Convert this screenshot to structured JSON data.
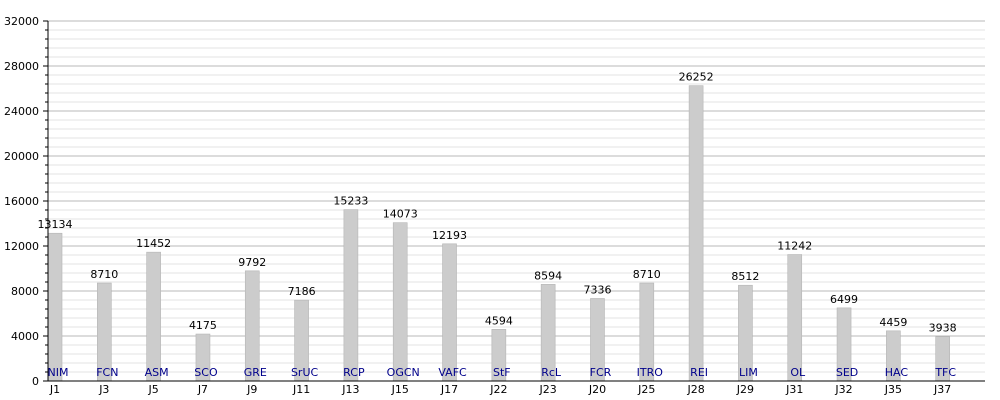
{
  "chart_data": {
    "type": "bar",
    "ylim": [
      0,
      32000
    ],
    "ytick_labels": [
      "0",
      "4000",
      "8000",
      "12000",
      "16000",
      "20000",
      "24000",
      "28000",
      "32000"
    ],
    "grid": true,
    "categories": [
      "J1",
      "J3",
      "J5",
      "J7",
      "J9",
      "J11",
      "J13",
      "J15",
      "J17",
      "J22",
      "J23",
      "J20",
      "J25",
      "J28",
      "J29",
      "J31",
      "J32",
      "J35",
      "J37"
    ],
    "bar_labels": [
      "NIM",
      "FCN",
      "ASM",
      "SCO",
      "GRE",
      "SrUC",
      "RCP",
      "OGCN",
      "VAFC",
      "StF",
      "RcL",
      "FCR",
      "ITRO",
      "REI",
      "LIM",
      "OL",
      "SED",
      "HAC",
      "TFC"
    ],
    "values": [
      13134,
      8710,
      11452,
      4175,
      9792,
      7186,
      15233,
      14073,
      12193,
      4594,
      8594,
      7336,
      8710,
      26252,
      8512,
      11242,
      6499,
      4459,
      3938
    ],
    "value_labels": [
      "13134",
      "8710",
      "11452",
      "4175",
      "9792",
      "7186",
      "15233",
      "14073",
      "12193",
      "4594",
      "8594",
      "7336",
      "8710",
      "26252",
      "8512",
      "11242",
      "6499",
      "4459",
      "3938"
    ],
    "colors": {
      "bar": "#cccccc",
      "grid_major": "#b8b8b8",
      "grid_minor": "#e3e3e3",
      "axis": "#000000",
      "text": "#000000",
      "team_label": "#00008b"
    }
  }
}
